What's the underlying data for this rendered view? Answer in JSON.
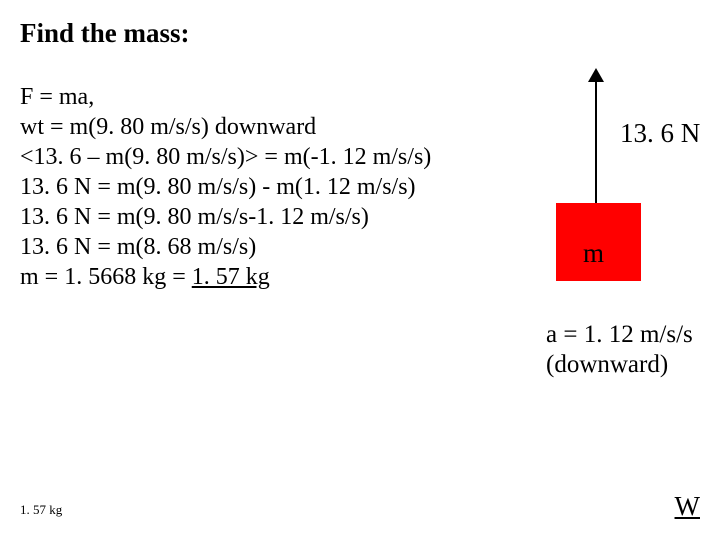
{
  "title": "Find the mass:",
  "work": {
    "line1": "F = ma,",
    "line2": "wt = m(9. 80 m/s/s) downward",
    "line3": "<13. 6 – m(9. 80 m/s/s)> = m(-1. 12 m/s/s)",
    "line4": "13. 6 N = m(9. 80 m/s/s) - m(1. 12 m/s/s)",
    "line5": "13. 6 N = m(9. 80 m/s/s-1. 12 m/s/s)",
    "line6": "13. 6 N = m(8. 68 m/s/s)",
    "line7_prefix": "m = 1. 5668 kg = ",
    "line7_result": "1. 57 kg"
  },
  "diagram": {
    "force_label": "13. 6 N",
    "block_label": "m",
    "block_color": "#ff0000",
    "arrow_color": "#000000"
  },
  "acceleration": {
    "line1": "a = 1. 12 m/s/s",
    "line2": "(downward)"
  },
  "footer": {
    "left": "1. 57 kg",
    "right": "W"
  }
}
